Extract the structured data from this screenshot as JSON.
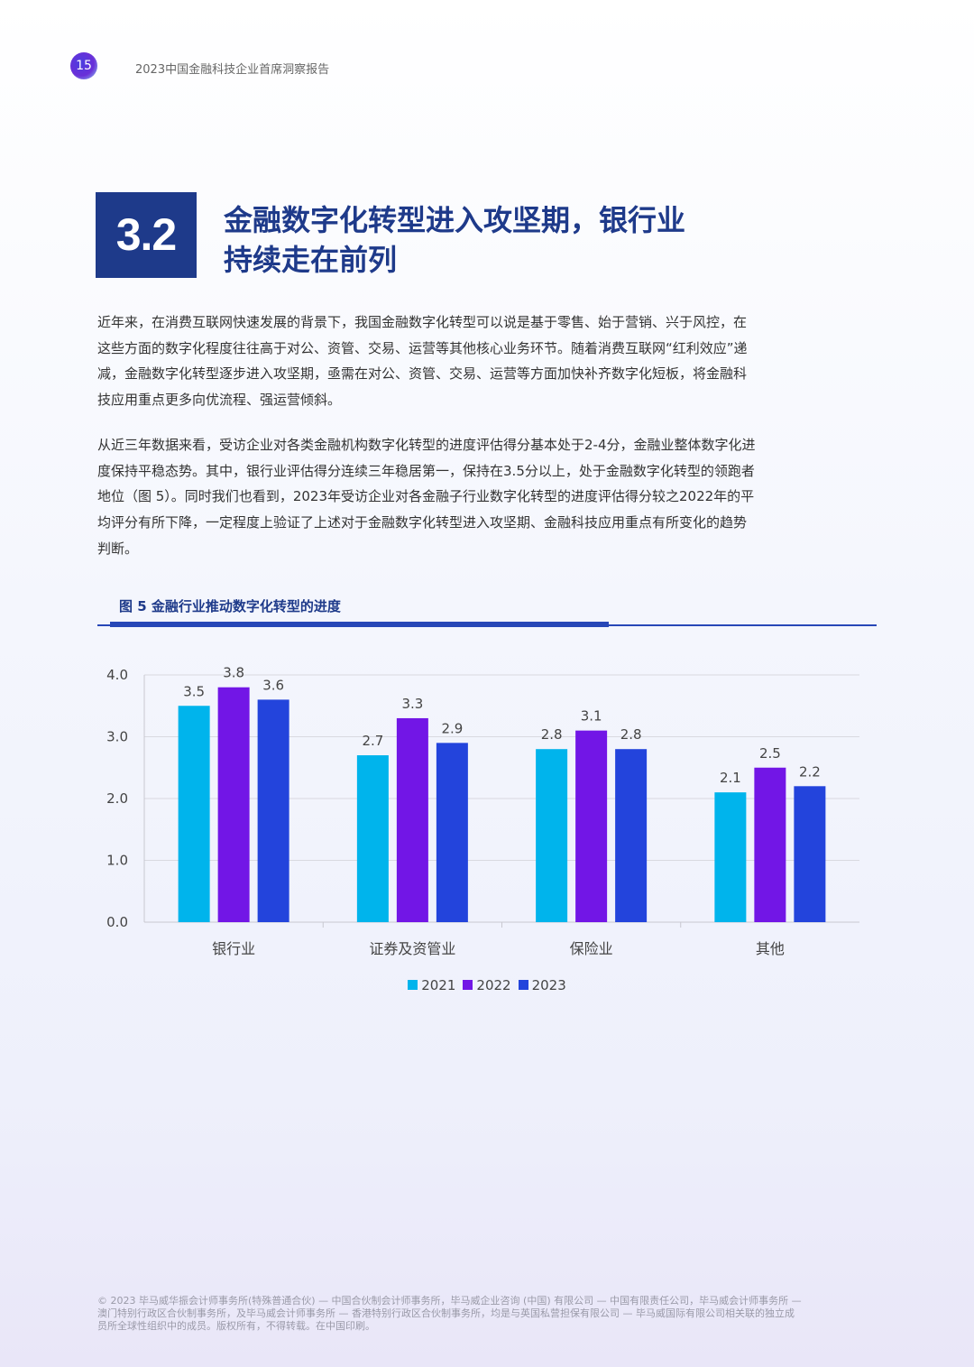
{
  "header": {
    "page_number": "15",
    "report_title": "2023中国金融科技企业首席洞察报告"
  },
  "section": {
    "number": "3.2",
    "title_line1": "金融数字化转型进入攻坚期，银行业",
    "title_line2": "持续走在前列"
  },
  "body": {
    "paragraph1": "近年来，在消费互联网快速发展的背景下，我国金融数字化转型可以说是基于零售、始于营销、兴于风控，在这些方面的数字化程度往往高于对公、资管、交易、运营等其他核心业务环节。随着消费互联网“红利效应”递减，金融数字化转型逐步进入攻坚期，亟需在对公、资管、交易、运营等方面加快补齐数字化短板，将金融科技应用重点更多向优流程、强运营倾斜。",
    "paragraph2": "从近三年数据来看，受访企业对各类金融机构数字化转型的进度评估得分基本处于2-4分，金融业整体数字化进度保持平稳态势。其中，银行业评估得分连续三年稳居第一，保持在3.5分以上，处于金融数字化转型的领跑者地位（图 5）。同时我们也看到，2023年受访企业对各金融子行业数字化转型的进度评估得分较之2022年的平均评分有所下降，一定程度上验证了上述对于金融数字化转型进入攻坚期、金融科技应用重点有所变化的趋势判断。"
  },
  "figure": {
    "title": "图 5 金融行业推动数字化转型的进度"
  },
  "chart_data": {
    "type": "bar",
    "categories": [
      "银行业",
      "证券及资管业",
      "保险业",
      "其他"
    ],
    "series": [
      {
        "name": "2021",
        "values": [
          3.5,
          2.7,
          2.8,
          2.1
        ],
        "color": "#00b4ec"
      },
      {
        "name": "2022",
        "values": [
          3.8,
          3.3,
          3.1,
          2.5
        ],
        "color": "#7216e6"
      },
      {
        "name": "2023",
        "values": [
          3.6,
          2.9,
          2.8,
          2.2
        ],
        "color": "#2344dc"
      }
    ],
    "yticks": [
      "0.0",
      "1.0",
      "2.0",
      "3.0",
      "4.0"
    ],
    "ylim": [
      0,
      4
    ],
    "grid": true,
    "legend": "bottom-center"
  },
  "footer": {
    "line1": "© 2023 毕马威华振会计师事务所(特殊普通合伙) — 中国合伙制会计师事务所，毕马威企业咨询 (中国) 有限公司 — 中国有限责任公司，毕马威会计师事务所 —",
    "line2": "澳门特别行政区合伙制事务所，及毕马威会计师事务所 — 香港特别行政区合伙制事务所，均是与英国私营担保有限公司 — 毕马威国际有限公司相关联的独立成",
    "line3": "员所全球性组织中的成员。版权所有，不得转载。在中国印刷。"
  }
}
